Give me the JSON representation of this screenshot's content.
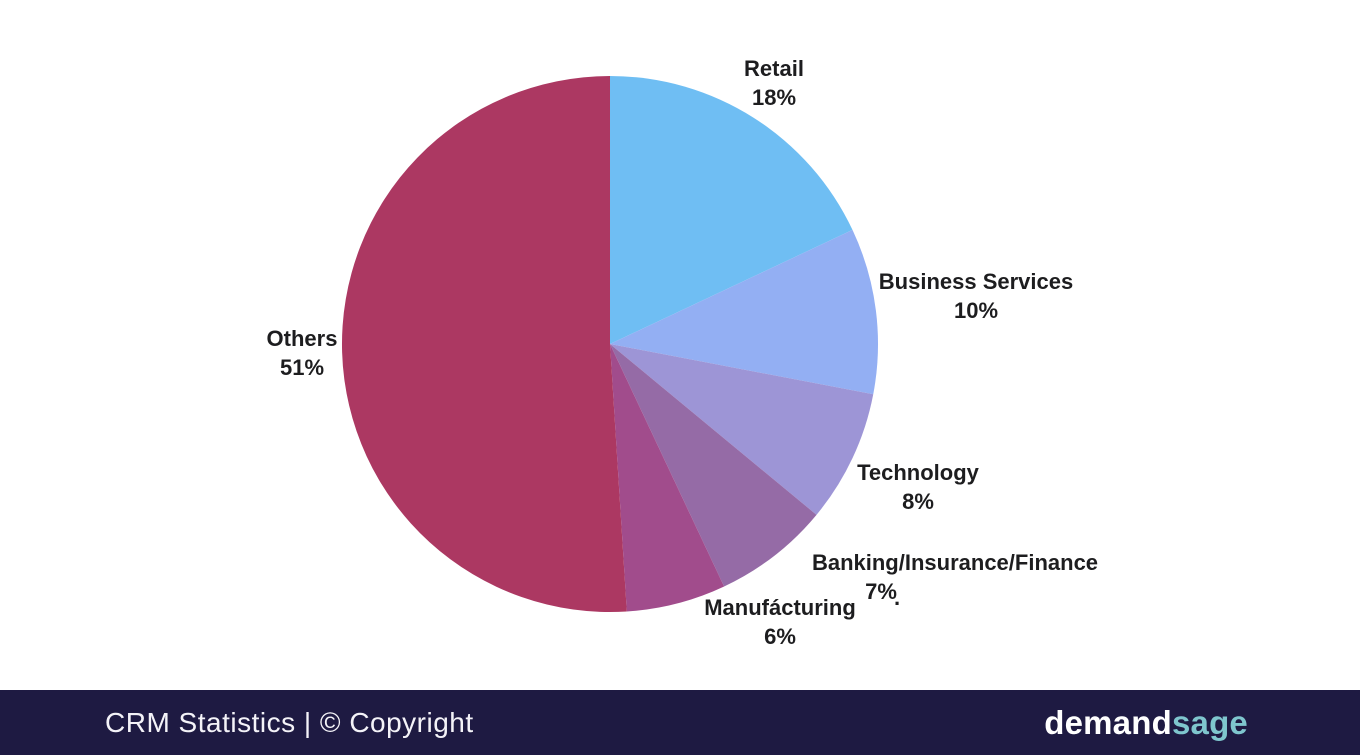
{
  "chart_data": {
    "type": "pie",
    "categories": [
      "Retail",
      "Business Services",
      "Technology",
      "Banking/Insurance/Finance",
      "Manufacturing",
      "Others"
    ],
    "values": [
      18,
      10,
      8,
      7,
      6,
      51
    ],
    "unit": "%",
    "colors": [
      "#6FBEF3",
      "#93AFF3",
      "#9D95D6",
      "#956BA6",
      "#A14C8C",
      "#AC3862"
    ],
    "start_angle": "12-oclock-clockwise",
    "legend_position": "none",
    "labels": [
      {
        "name": "Retail",
        "pct": "18%"
      },
      {
        "name": "Business Services",
        "pct": "10%"
      },
      {
        "name": "Technology",
        "pct": "8%"
      },
      {
        "name": "Banking/Insurance/Finance",
        "pct": "7%"
      },
      {
        "name": "Manufácturing",
        "pct": "6%"
      },
      {
        "name": "Others",
        "pct": "51%"
      }
    ]
  },
  "artifacts": {
    "stray_dot": "."
  },
  "footer": {
    "caption": "CRM Statistics | © Copyright",
    "brand_demand": "demand",
    "brand_sage": "sage",
    "colors": {
      "background": "#1E1A42",
      "text": "#F4F3F8",
      "sage_accent": "#7FC6CE"
    }
  }
}
